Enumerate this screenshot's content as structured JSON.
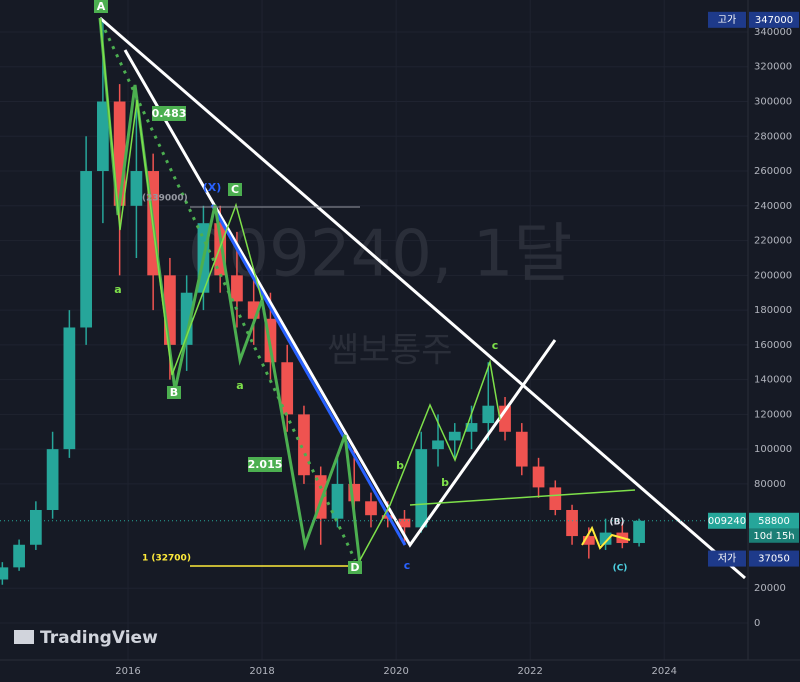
{
  "chart_data": {
    "type": "candlestick",
    "watermark": "009240, 1달",
    "watermark_sub": "쌤보통주",
    "logo": "TradingView",
    "x": [
      2014.125,
      2014.375,
      2014.625,
      2014.875,
      2015.125,
      2015.375,
      2015.625,
      2015.875,
      2016.125,
      2016.375,
      2016.625,
      2016.875,
      2017.125,
      2017.375,
      2017.625,
      2017.875,
      2018.125,
      2018.375,
      2018.625,
      2018.875,
      2019.125,
      2019.375,
      2019.625,
      2019.875,
      2020.125,
      2020.375,
      2020.625,
      2020.875,
      2021.125,
      2021.375,
      2021.625,
      2021.875,
      2022.125,
      2022.375,
      2022.625,
      2022.875,
      2023.125,
      2023.375,
      2023.625
    ],
    "open": [
      25000,
      32000,
      45000,
      65000,
      100000,
      170000,
      260000,
      300000,
      240000,
      260000,
      200000,
      160000,
      190000,
      230000,
      200000,
      185000,
      175000,
      150000,
      120000,
      85000,
      60000,
      80000,
      70000,
      62000,
      60000,
      55000,
      100000,
      105000,
      110000,
      115000,
      125000,
      110000,
      90000,
      78000,
      65000,
      50000,
      45000,
      52000,
      46000
    ],
    "high": [
      35000,
      48000,
      70000,
      110000,
      180000,
      280000,
      347000,
      310000,
      300000,
      270000,
      210000,
      200000,
      240000,
      240000,
      225000,
      200000,
      190000,
      160000,
      125000,
      90000,
      95000,
      100000,
      75000,
      70000,
      65000,
      110000,
      120000,
      115000,
      125000,
      150000,
      130000,
      115000,
      95000,
      82000,
      68000,
      55000,
      60000,
      58000,
      60000
    ],
    "low": [
      22000,
      30000,
      42000,
      60000,
      95000,
      160000,
      230000,
      200000,
      210000,
      180000,
      140000,
      145000,
      180000,
      190000,
      170000,
      160000,
      140000,
      110000,
      80000,
      45000,
      55000,
      60000,
      55000,
      55000,
      45000,
      52000,
      90000,
      95000,
      100000,
      105000,
      105000,
      85000,
      72000,
      62000,
      45000,
      37050,
      42000,
      43000,
      44000
    ],
    "close": [
      32000,
      45000,
      65000,
      100000,
      170000,
      260000,
      300000,
      240000,
      260000,
      200000,
      160000,
      190000,
      230000,
      200000,
      185000,
      175000,
      150000,
      120000,
      85000,
      60000,
      80000,
      70000,
      62000,
      60000,
      55000,
      100000,
      105000,
      110000,
      115000,
      125000,
      110000,
      90000,
      78000,
      65000,
      50000,
      45000,
      52000,
      46000,
      58800
    ],
    "up_color": "#26a69a",
    "down_color": "#ef5350",
    "xlim": [
      2014.09,
      2025.25
    ],
    "xticks": [
      2016,
      2018,
      2020,
      2022,
      2024
    ],
    "ylim": [
      -21300,
      358400
    ],
    "yticks": [
      0,
      20000,
      80000,
      100000,
      120000,
      140000,
      160000,
      180000,
      200000,
      220000,
      240000,
      260000,
      280000,
      300000,
      320000,
      340000
    ],
    "grid": true,
    "high_label": {
      "name": "고가",
      "value": 347000
    },
    "last_label": {
      "name": "009240",
      "value": 58800,
      "countdown": "10d 15h"
    },
    "low_label": {
      "name": "저가",
      "value": 37050
    },
    "annotations": [
      "A",
      "B",
      "C",
      "D",
      "0.483",
      "2.015",
      "1 (32700)",
      "(239000)",
      "(X)",
      "(B)",
      "(C)",
      "a",
      "b",
      "c",
      "a",
      "b",
      "c"
    ]
  }
}
